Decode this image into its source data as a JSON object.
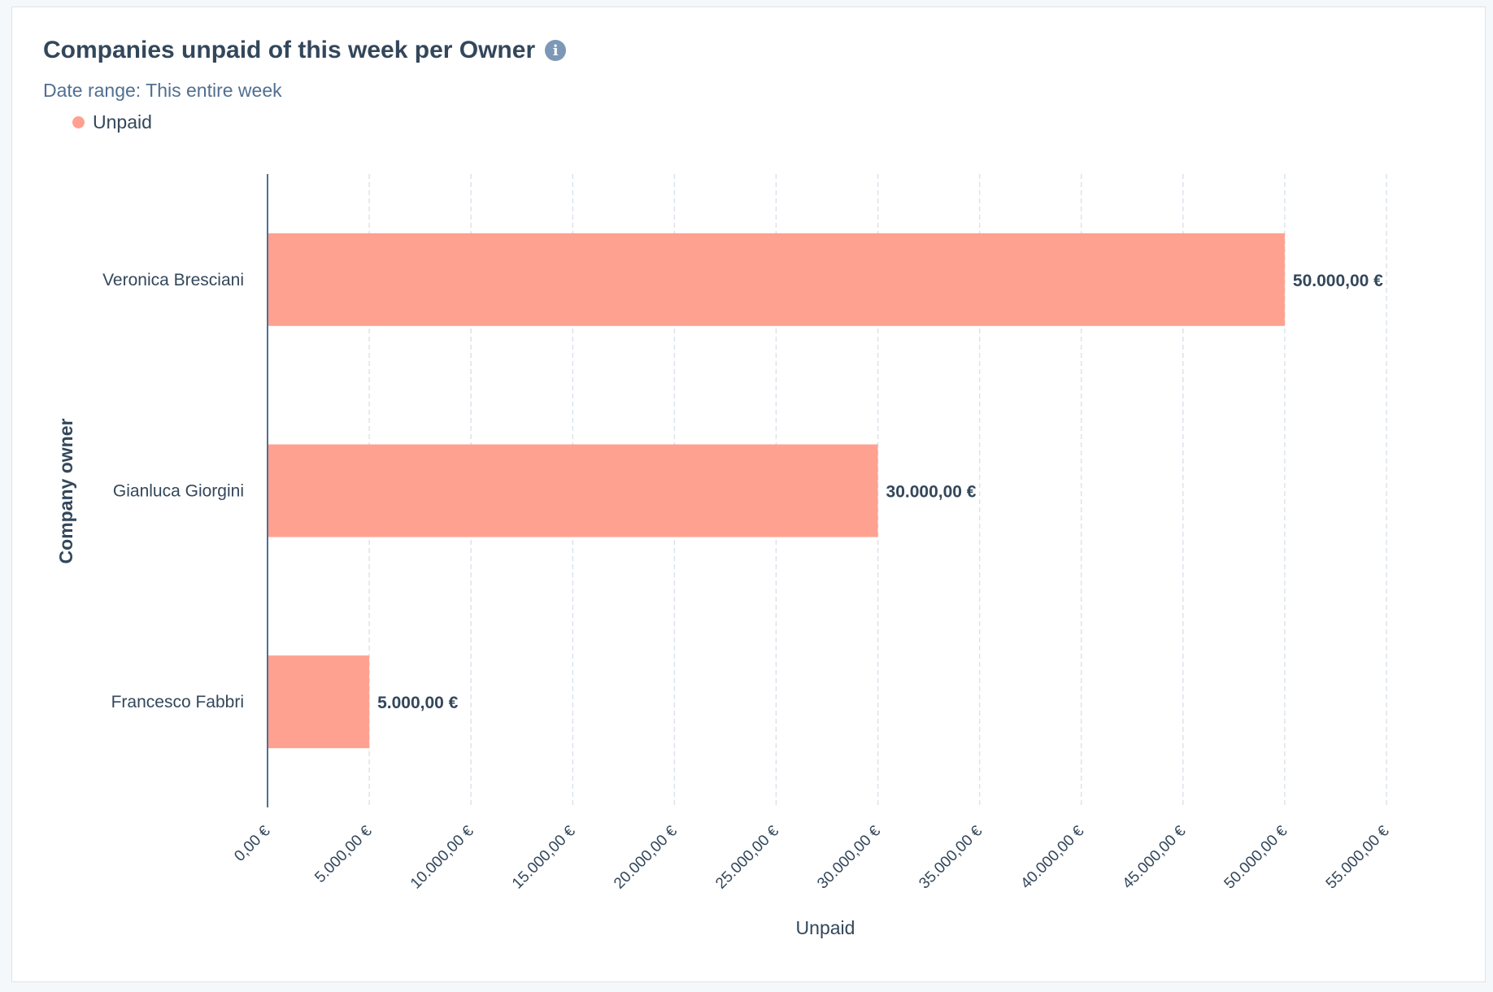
{
  "card": {
    "title": "Companies unpaid of this week per Owner",
    "info_icon": "info-icon",
    "date_range": "Date range: This entire week"
  },
  "colors": {
    "bar": "#ffa190",
    "text": "#33475b",
    "axis": "#516f90",
    "grid": "#dbe3ec"
  },
  "chart_data": {
    "type": "bar",
    "orientation": "horizontal",
    "title": "Companies unpaid of this week per Owner",
    "subtitle": "Date range: This entire week",
    "categories": [
      "Veronica Bresciani",
      "Gianluca Giorgini",
      "Francesco Fabbri"
    ],
    "series": [
      {
        "name": "Unpaid",
        "values": [
          50000,
          30000,
          5000
        ]
      }
    ],
    "data_labels": [
      "50.000,00 €",
      "30.000,00 €",
      "5.000,00 €"
    ],
    "xlabel": "Unpaid",
    "ylabel": "Company owner",
    "xlim": [
      0,
      55000
    ],
    "xticks": [
      0,
      5000,
      10000,
      15000,
      20000,
      25000,
      30000,
      35000,
      40000,
      45000,
      50000,
      55000
    ],
    "xtick_labels": [
      "0,00 €",
      "5.000,00 €",
      "10.000,00 €",
      "15.000,00 €",
      "20.000,00 €",
      "25.000,00 €",
      "30.000,00 €",
      "35.000,00 €",
      "40.000,00 €",
      "45.000,00 €",
      "50.000,00 €",
      "55.000,00 €"
    ],
    "grid": true,
    "legend": "top-left"
  }
}
